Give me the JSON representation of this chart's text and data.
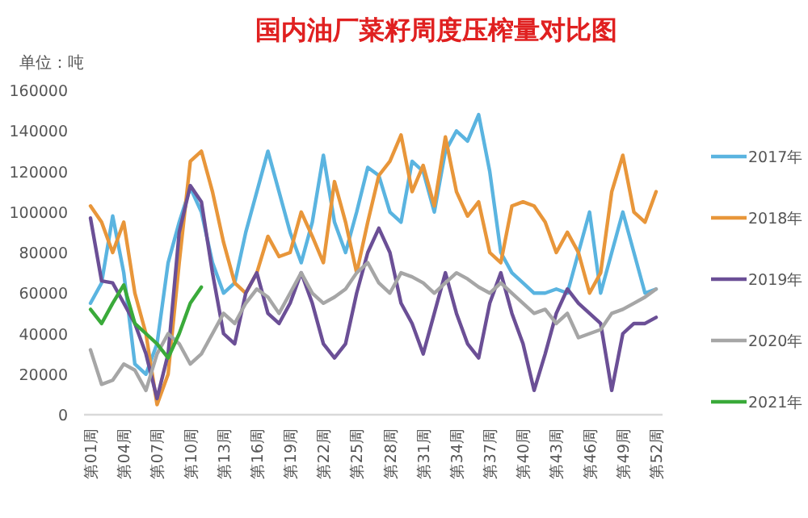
{
  "chart_data": {
    "type": "line",
    "title": "国内油厂菜籽周度压榨量对比图",
    "ylabel": "单位：吨",
    "categories": [
      "第01周",
      null,
      null,
      "第04周",
      null,
      null,
      "第07周",
      null,
      null,
      "第10周",
      null,
      null,
      "第13周",
      null,
      null,
      "第16周",
      null,
      null,
      "第19周",
      null,
      null,
      "第22周",
      null,
      null,
      "第25周",
      null,
      null,
      "第28周",
      null,
      null,
      "第31周",
      null,
      null,
      "第34周",
      null,
      null,
      "第37周",
      null,
      null,
      "第40周",
      null,
      null,
      "第43周",
      null,
      null,
      "第46周",
      null,
      null,
      "第49周",
      null,
      null,
      "第52周"
    ],
    "ylim": [
      0,
      160000
    ],
    "yticks": [
      0,
      20000,
      40000,
      60000,
      80000,
      100000,
      120000,
      140000,
      160000
    ],
    "legend": "right",
    "series": [
      {
        "name": "2017年",
        "color": "#5ab4e0",
        "values": [
          55000,
          65000,
          98000,
          70000,
          25000,
          20000,
          35000,
          75000,
          95000,
          112000,
          100000,
          75000,
          60000,
          65000,
          90000,
          110000,
          130000,
          110000,
          90000,
          75000,
          95000,
          128000,
          95000,
          80000,
          100000,
          122000,
          118000,
          100000,
          95000,
          125000,
          120000,
          100000,
          130000,
          140000,
          135000,
          148000,
          120000,
          80000,
          70000,
          65000,
          60000,
          60000,
          62000,
          60000,
          80000,
          100000,
          60000,
          80000,
          100000,
          80000,
          60000,
          62000
        ]
      },
      {
        "name": "2018年",
        "color": "#e8963a",
        "values": [
          103000,
          95000,
          80000,
          95000,
          60000,
          40000,
          5000,
          20000,
          75000,
          125000,
          130000,
          110000,
          85000,
          65000,
          60000,
          70000,
          88000,
          78000,
          80000,
          100000,
          88000,
          75000,
          115000,
          95000,
          70000,
          95000,
          118000,
          125000,
          138000,
          110000,
          123000,
          103000,
          137000,
          110000,
          98000,
          105000,
          80000,
          75000,
          103000,
          105000,
          103000,
          95000,
          80000,
          90000,
          80000,
          60000,
          70000,
          110000,
          128000,
          100000,
          95000,
          110000
        ]
      },
      {
        "name": "2019年",
        "color": "#6b4f96",
        "values": [
          97000,
          66000,
          65000,
          55000,
          45000,
          30000,
          8000,
          30000,
          90000,
          113000,
          105000,
          70000,
          40000,
          35000,
          60000,
          70000,
          50000,
          45000,
          55000,
          70000,
          55000,
          35000,
          28000,
          35000,
          60000,
          80000,
          92000,
          80000,
          55000,
          45000,
          30000,
          50000,
          70000,
          50000,
          35000,
          28000,
          55000,
          70000,
          50000,
          35000,
          12000,
          30000,
          50000,
          62000,
          55000,
          50000,
          45000,
          12000,
          40000,
          45000,
          45000,
          48000
        ]
      },
      {
        "name": "2020年",
        "color": "#a6a6a6",
        "values": [
          32000,
          15000,
          17000,
          25000,
          22000,
          12000,
          30000,
          40000,
          35000,
          25000,
          30000,
          40000,
          50000,
          45000,
          55000,
          62000,
          58000,
          50000,
          60000,
          70000,
          60000,
          55000,
          58000,
          62000,
          70000,
          75000,
          65000,
          60000,
          70000,
          68000,
          65000,
          60000,
          65000,
          70000,
          67000,
          63000,
          60000,
          65000,
          60000,
          55000,
          50000,
          52000,
          45000,
          50000,
          38000,
          40000,
          42000,
          50000,
          52000,
          55000,
          58000,
          62000
        ]
      },
      {
        "name": "2021年",
        "color": "#3aaa3a",
        "values": [
          52000,
          45000,
          55000,
          64000,
          45000,
          40000,
          35000,
          28000,
          40000,
          55000,
          63000,
          null,
          null,
          null,
          null,
          null,
          null,
          null,
          null,
          null,
          null,
          null,
          null,
          null,
          null,
          null,
          null,
          null,
          null,
          null,
          null,
          null,
          null,
          null,
          null,
          null,
          null,
          null,
          null,
          null,
          null,
          null,
          null,
          null,
          null,
          null,
          null,
          null,
          null,
          null,
          null,
          null
        ]
      }
    ]
  }
}
